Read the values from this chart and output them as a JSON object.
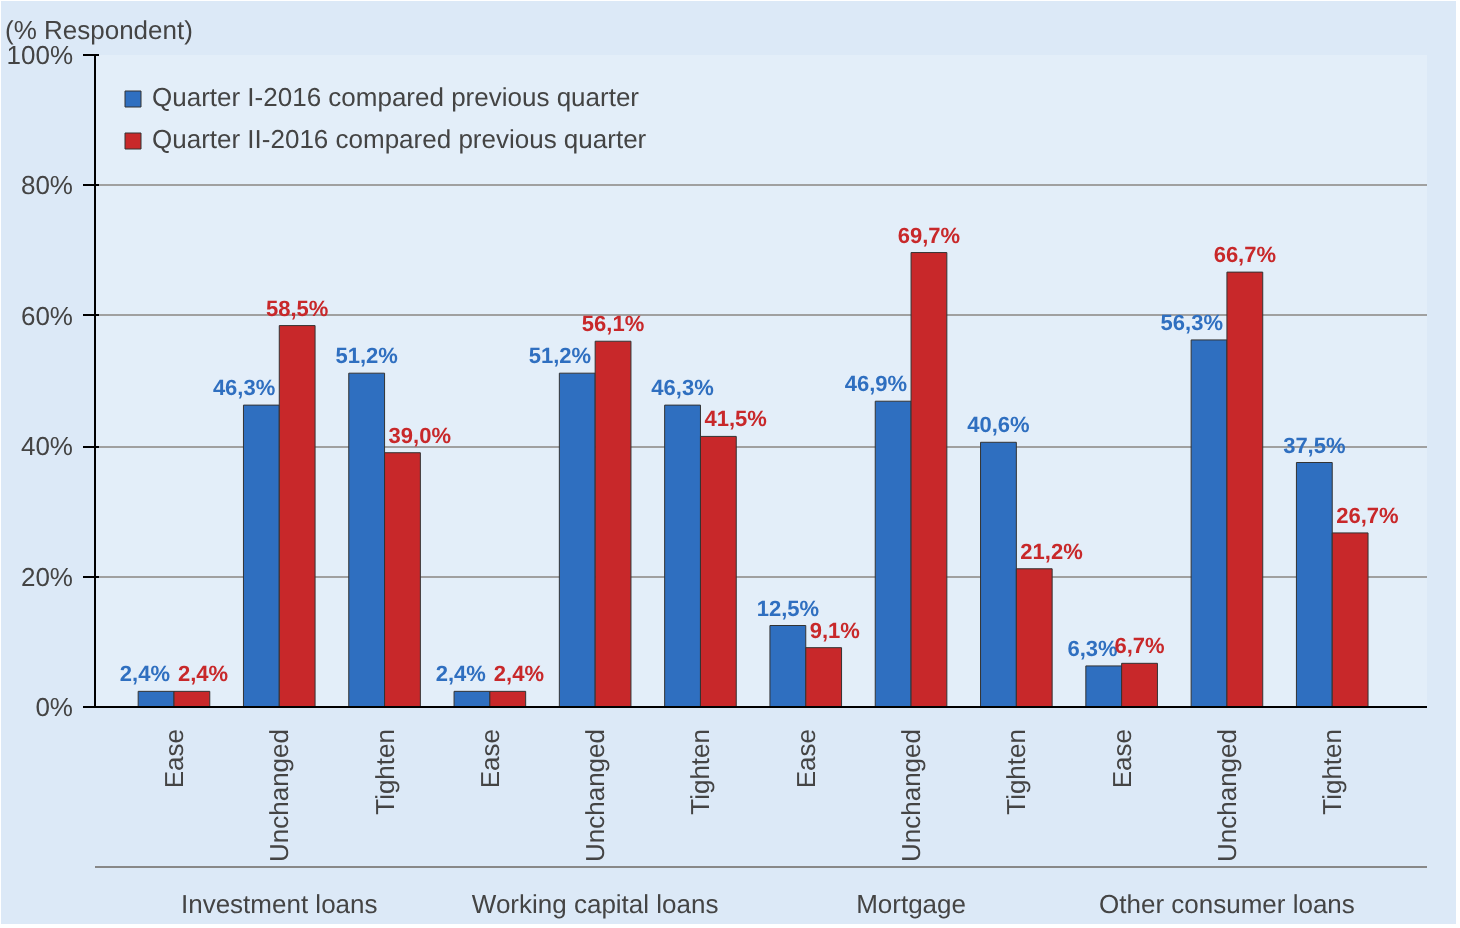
{
  "chart_data": {
    "type": "bar",
    "ylabel": "(% Respondent)",
    "categories": [
      "Ease",
      "Unchanged",
      "Tighten",
      "Ease",
      "Unchanged",
      "Tighten",
      "Ease",
      "Unchanged",
      "Tighten",
      "Ease",
      "Unchanged",
      "Tighten"
    ],
    "series": [
      {
        "name": "Quarter I-2016 compared previous quarter",
        "color": "#2f6fc0",
        "values": [
          2.4,
          46.3,
          51.2,
          2.4,
          51.2,
          46.3,
          12.5,
          46.9,
          40.6,
          6.3,
          56.3,
          37.5
        ],
        "value_labels": [
          "2,4%",
          "46,3%",
          "51,2%",
          "2,4%",
          "51,2%",
          "46,3%",
          "12,5%",
          "46,9%",
          "40,6%",
          "6,3%",
          "56,3%",
          "37,5%"
        ]
      },
      {
        "name": "Quarter II-2016 compared previous quarter",
        "color": "#c8282a",
        "values": [
          2.4,
          58.5,
          39.0,
          2.4,
          56.1,
          41.5,
          9.1,
          69.7,
          21.2,
          6.7,
          66.7,
          26.7
        ],
        "value_labels": [
          "2,4%",
          "58,5%",
          "39,0%",
          "2,4%",
          "56,1%",
          "41,5%",
          "9,1%",
          "69,7%",
          "21,2%",
          "6,7%",
          "66,7%",
          "26,7%"
        ]
      }
    ],
    "annotations": [
      "Investment loans",
      "Working capital loans",
      "Mortgage",
      "Other consumer loans"
    ],
    "ylim": [
      0,
      100
    ],
    "yticks": [
      {
        "value": 0,
        "label": "0%"
      },
      {
        "value": 20,
        "label": "20%"
      },
      {
        "value": 40,
        "label": "40%"
      },
      {
        "value": 60,
        "label": "60%"
      },
      {
        "value": 80,
        "label": "80%"
      },
      {
        "value": 100,
        "label": "100%"
      }
    ],
    "grid": "y",
    "legend": "top left"
  }
}
